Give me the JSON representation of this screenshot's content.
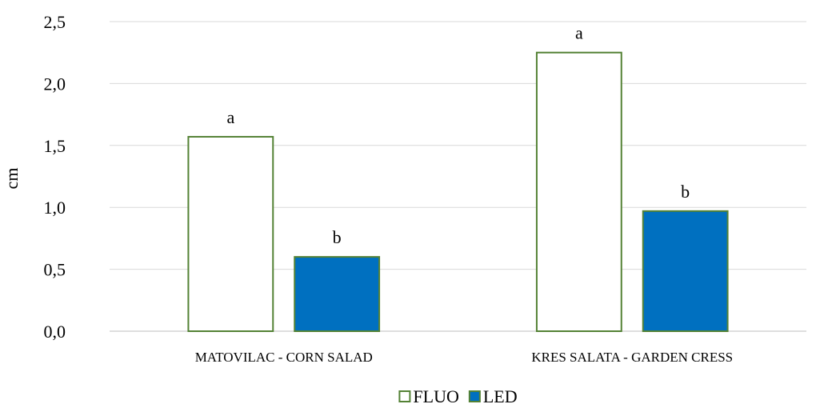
{
  "chart_data": {
    "type": "bar",
    "title": "",
    "xlabel": "",
    "ylabel": "cm",
    "ylim": [
      0,
      2.5
    ],
    "yticks": [
      "0,0",
      "0,5",
      "1,0",
      "1,5",
      "2,0",
      "2,5"
    ],
    "ytick_values": [
      0,
      0.5,
      1.0,
      1.5,
      2.0,
      2.5
    ],
    "grid": true,
    "legend_position": "bottom",
    "categories": [
      "MATOVILAC - CORN SALAD",
      "KRES SALATA - GARDEN CRESS"
    ],
    "series": [
      {
        "name": "FLUO",
        "values": [
          1.57,
          2.25
        ],
        "labels": [
          "a",
          "a"
        ],
        "fill": "#ffffff",
        "stroke": "#548235"
      },
      {
        "name": "LED",
        "values": [
          0.6,
          0.97
        ],
        "labels": [
          "b",
          "b"
        ],
        "fill": "#0070c0",
        "stroke": "#548235"
      }
    ]
  }
}
